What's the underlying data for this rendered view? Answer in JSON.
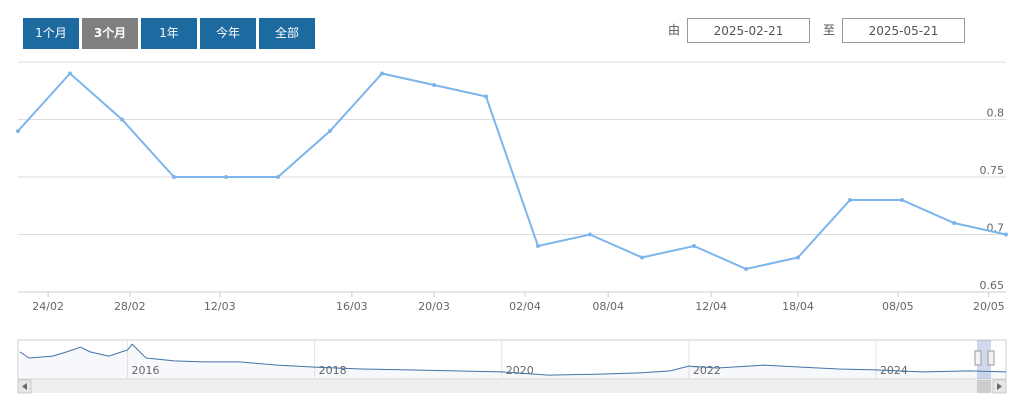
{
  "range_selector": {
    "buttons": [
      "1个月",
      "3个月",
      "1年",
      "今年",
      "全部"
    ],
    "from_label": "由",
    "from": "2025-02-21",
    "to_label": "至",
    "to": "2025-05-21"
  },
  "chart_data": {
    "type": "line",
    "x": [
      0,
      1,
      2,
      3,
      4,
      5,
      6,
      7,
      8,
      9,
      10,
      11,
      12,
      13,
      14,
      15,
      16,
      17,
      18,
      19
    ],
    "series": [
      {
        "color": "#7cb5ec",
        "values": [
          0.79,
          0.84,
          0.8,
          0.75,
          0.75,
          0.75,
          0.79,
          0.84,
          0.83,
          0.82,
          0.69,
          0.7,
          0.68,
          0.69,
          0.67,
          0.68,
          0.73,
          0.73,
          0.71,
          0.7
        ]
      }
    ],
    "xlim": [
      0,
      19
    ],
    "xticks": [
      {
        "value": 0.58,
        "label": "24/02"
      },
      {
        "value": 2.15,
        "label": "28/02"
      },
      {
        "value": 3.88,
        "label": "12/03"
      },
      {
        "value": 6.42,
        "label": "16/03"
      },
      {
        "value": 8.0,
        "label": "20/03"
      },
      {
        "value": 9.75,
        "label": "02/04"
      },
      {
        "value": 11.35,
        "label": "08/04"
      },
      {
        "value": 13.33,
        "label": "12/04"
      },
      {
        "value": 15.0,
        "label": "18/04"
      },
      {
        "value": 16.92,
        "label": "08/05"
      },
      {
        "value": 18.67,
        "label": "20/05"
      }
    ],
    "ylim": [
      0.65,
      0.85
    ],
    "yticks": [
      0.65,
      0.7,
      0.75,
      0.8
    ],
    "grid": true
  },
  "navigator": {
    "type": "area",
    "color": "#4572a7",
    "x": [
      2014.85,
      2014.95,
      2015.2,
      2015.35,
      2015.5,
      2015.6,
      2015.8,
      2016.0,
      2016.05,
      2016.2,
      2016.5,
      2016.8,
      2017.2,
      2017.6,
      2018.0,
      2018.5,
      2019.0,
      2019.5,
      2020.0,
      2020.5,
      2021.0,
      2021.5,
      2021.8,
      2022.0,
      2022.3,
      2022.8,
      2023.2,
      2023.6,
      2024.0,
      2024.5,
      2025.0,
      2025.39
    ],
    "values": [
      1.05,
      0.92,
      0.96,
      1.05,
      1.15,
      1.05,
      0.96,
      1.09,
      1.21,
      0.92,
      0.86,
      0.84,
      0.84,
      0.77,
      0.73,
      0.69,
      0.67,
      0.65,
      0.63,
      0.56,
      0.58,
      0.61,
      0.65,
      0.75,
      0.71,
      0.77,
      0.73,
      0.69,
      0.67,
      0.63,
      0.65,
      0.63
    ],
    "xlim": [
      2014.83,
      2025.39
    ],
    "xticks": [
      2016,
      2018,
      2020,
      2022,
      2024
    ],
    "ylim": [
      0.5,
      1.3
    ]
  }
}
